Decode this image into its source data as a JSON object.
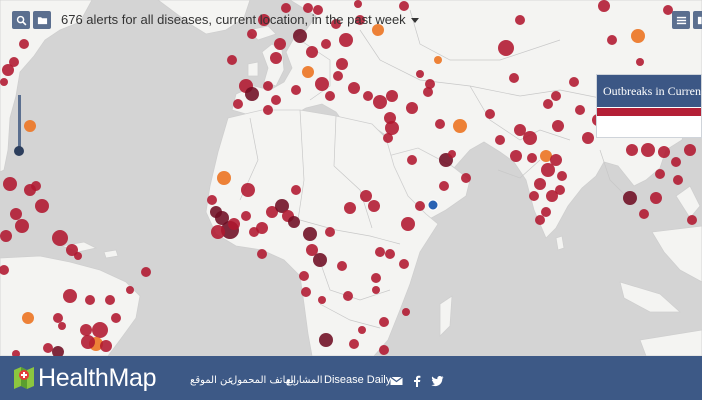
{
  "toolbar": {
    "alerts_summary": "676 alerts for all diseases, current location, in the past week"
  },
  "panel": {
    "title": "Outbreaks in Current"
  },
  "footer": {
    "brand": "HealthMap",
    "links": [
      "عن الموقع",
      "الهاتف المحمول",
      "المشاريع",
      "Disease Daily"
    ]
  },
  "colors": {
    "alert_recent": "#b0172f",
    "alert_dark": "#6e0d22",
    "alert_older": "#ec7a2c",
    "selected_location": "#2a63b4",
    "ui_blue": "#3d5986"
  },
  "icons": [
    "search-icon",
    "folder-icon",
    "list-icon",
    "columns-icon",
    "email-icon",
    "facebook-icon",
    "twitter-icon"
  ]
}
